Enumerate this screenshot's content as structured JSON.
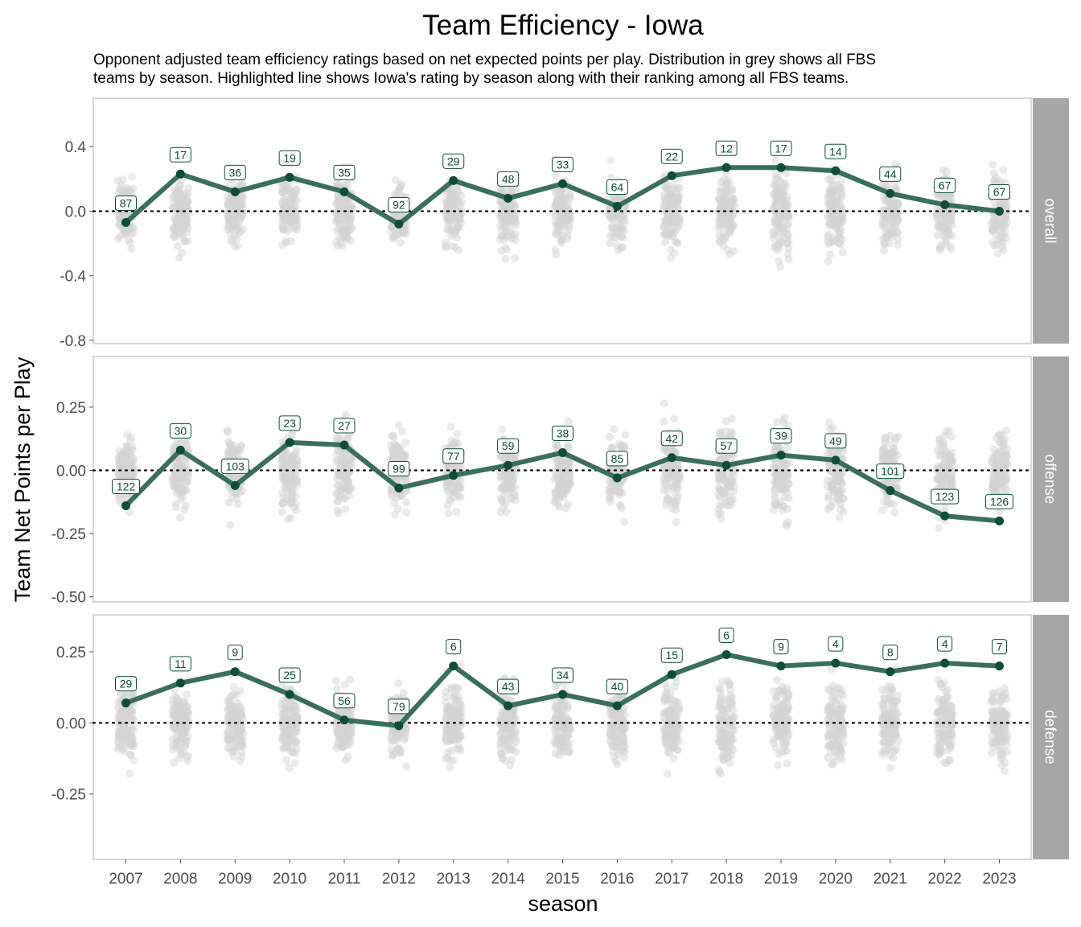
{
  "chart_data": {
    "type": "line",
    "title": "Team Efficiency - Iowa",
    "subtitle_lines": [
      "Opponent adjusted team efficiency ratings based on net expected points per play. Distribution in grey shows all FBS",
      "teams by season. Highlighted line shows Iowa's rating by season along with their ranking among all FBS teams."
    ],
    "xlabel": "season",
    "ylabel": "Team Net Points per Play",
    "x": [
      2007,
      2008,
      2009,
      2010,
      2011,
      2012,
      2013,
      2014,
      2015,
      2016,
      2017,
      2018,
      2019,
      2020,
      2021,
      2022,
      2023
    ],
    "highlight_color": "#3a6e5e",
    "point_color": "#0d4d3a",
    "distribution_color": "#d3d3d3",
    "strip_color": "#a6a6a6",
    "panels": [
      {
        "name": "overall",
        "ylim": [
          -0.82,
          0.7
        ],
        "yticks": [
          0.4,
          0.0,
          -0.4,
          -0.8
        ],
        "ytick_labels": [
          "0.4",
          "0.0",
          "-0.4",
          "-0.8"
        ],
        "values": [
          -0.07,
          0.23,
          0.12,
          0.21,
          0.12,
          -0.08,
          0.19,
          0.08,
          0.17,
          0.03,
          0.22,
          0.27,
          0.27,
          0.25,
          0.11,
          0.04,
          0.0
        ],
        "ranks": [
          "87",
          "17",
          "36",
          "19",
          "35",
          "92",
          "29",
          "48",
          "33",
          "64",
          "22",
          "12",
          "17",
          "14",
          "44",
          "67",
          "67"
        ],
        "spread": [
          0.2,
          0.22,
          0.22,
          0.22,
          0.22,
          0.2,
          0.22,
          0.22,
          0.22,
          0.22,
          0.24,
          0.26,
          0.28,
          0.26,
          0.24,
          0.24,
          0.22
        ]
      },
      {
        "name": "offense",
        "ylim": [
          -0.52,
          0.45
        ],
        "yticks": [
          0.25,
          0.0,
          -0.25,
          -0.5
        ],
        "ytick_labels": [
          "0.25",
          "0.00",
          "-0.25",
          "-0.50"
        ],
        "values": [
          -0.14,
          0.08,
          -0.06,
          0.11,
          0.1,
          -0.07,
          -0.02,
          0.02,
          0.07,
          -0.03,
          0.05,
          0.02,
          0.06,
          0.04,
          -0.08,
          -0.18,
          -0.2
        ],
        "ranks": [
          "122",
          "30",
          "103",
          "23",
          "27",
          "99",
          "77",
          "59",
          "38",
          "85",
          "42",
          "57",
          "39",
          "49",
          "101",
          "123",
          "126"
        ],
        "spread": [
          0.15,
          0.15,
          0.15,
          0.16,
          0.16,
          0.15,
          0.16,
          0.16,
          0.16,
          0.15,
          0.17,
          0.18,
          0.19,
          0.18,
          0.16,
          0.16,
          0.16
        ]
      },
      {
        "name": "defense",
        "ylim": [
          -0.48,
          0.38
        ],
        "yticks": [
          0.25,
          0.0,
          -0.25
        ],
        "ytick_labels": [
          "0.25",
          "0.00",
          "-0.25"
        ],
        "values": [
          0.07,
          0.14,
          0.18,
          0.1,
          0.01,
          -0.01,
          0.2,
          0.06,
          0.1,
          0.06,
          0.17,
          0.24,
          0.2,
          0.21,
          0.18,
          0.21,
          0.2
        ],
        "ranks": [
          "29",
          "11",
          "9",
          "25",
          "56",
          "79",
          "6",
          "43",
          "34",
          "40",
          "15",
          "6",
          "9",
          "4",
          "8",
          "4",
          "7"
        ],
        "spread": [
          0.13,
          0.13,
          0.13,
          0.13,
          0.13,
          0.12,
          0.14,
          0.14,
          0.14,
          0.13,
          0.15,
          0.16,
          0.16,
          0.15,
          0.14,
          0.14,
          0.14
        ]
      }
    ]
  }
}
